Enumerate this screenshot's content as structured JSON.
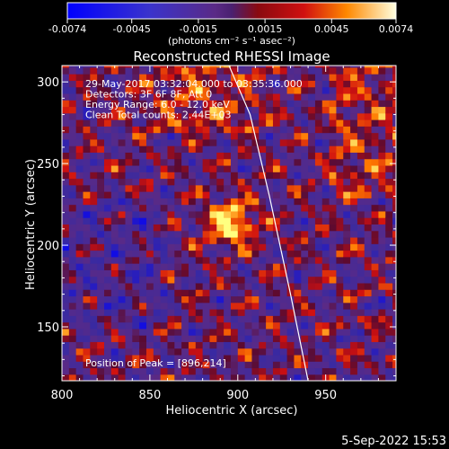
{
  "chart_data": {
    "type": "heatmap",
    "title": "Reconstructed RHESSI Image",
    "xlabel": "Heliocentric X (arcsec)",
    "ylabel": "Heliocentric Y (arcsec)",
    "xlim": [
      800,
      990
    ],
    "ylim": [
      117,
      310
    ],
    "x_ticks": [
      800,
      850,
      900,
      950
    ],
    "x_tick_labels": [
      "800",
      "850",
      "900",
      "950"
    ],
    "y_ticks": [
      150,
      200,
      250,
      300
    ],
    "y_tick_labels": [
      "150",
      "200",
      "250",
      "300"
    ],
    "annotations": [
      "29-May-2017 03:32:04.000 to 03:35:36.000",
      "Detectors: 3F 6F 8F, Att 0",
      "Energy Range: 6.0 - 12.0 keV",
      "Clean     Total counts: 2.44E+03"
    ],
    "peak_label": "Position of Peak = [896,214]",
    "peak": [
      896,
      214
    ],
    "colorbar": {
      "min": -0.0074,
      "max": 0.0074,
      "ticks": [
        -0.0074,
        -0.0045,
        -0.0015,
        0.0015,
        0.0045,
        0.0074
      ],
      "tick_labels": [
        "-0.0074",
        "-0.0045",
        "-0.0015",
        "0.0015",
        "0.0045",
        "0.0074"
      ],
      "unit_label": "(photons cm⁻² s⁻¹ asec⁻²)"
    },
    "limb_curve": [
      [
        940,
        117
      ],
      [
        930,
        170
      ],
      [
        918,
        230
      ],
      [
        907,
        280
      ],
      [
        895,
        310
      ]
    ],
    "timestamp": "5-Sep-2022 15:53",
    "colors": {
      "background": "#000000",
      "text": "#ffffff",
      "negative": "#0000ff",
      "zero": "#5a2a86",
      "positive_mid": "#d01010",
      "positive_high": "#ffff80"
    }
  }
}
